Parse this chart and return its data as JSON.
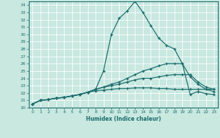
{
  "title": "",
  "xlabel": "Humidex (Indice chaleur)",
  "ylabel": "",
  "xlim": [
    -0.5,
    23.5
  ],
  "ylim": [
    20,
    34.5
  ],
  "yticks": [
    20,
    21,
    22,
    23,
    24,
    25,
    26,
    27,
    28,
    29,
    30,
    31,
    32,
    33,
    34
  ],
  "xticks": [
    0,
    1,
    2,
    3,
    4,
    5,
    6,
    7,
    8,
    9,
    10,
    11,
    12,
    13,
    14,
    15,
    16,
    17,
    18,
    19,
    20,
    21,
    22,
    23
  ],
  "bg_color": "#c8e8e0",
  "grid_color": "#ffffff",
  "line_color": "#1a6b6b",
  "lines": [
    {
      "x": [
        0,
        1,
        2,
        3,
        4,
        5,
        6,
        7,
        8,
        9,
        10,
        11,
        12,
        13,
        14,
        15,
        16,
        17,
        18,
        19,
        20,
        21,
        22,
        23
      ],
      "y": [
        20.5,
        21.0,
        21.1,
        21.3,
        21.4,
        21.6,
        21.8,
        22.1,
        22.5,
        25.0,
        30.0,
        32.2,
        33.2,
        34.5,
        33.0,
        31.2,
        29.5,
        28.5,
        28.0,
        26.0,
        21.8,
        22.2,
        21.9,
        21.8
      ]
    },
    {
      "x": [
        0,
        1,
        2,
        3,
        4,
        5,
        6,
        7,
        8,
        9,
        10,
        11,
        12,
        13,
        14,
        15,
        16,
        17,
        18,
        19,
        20,
        21,
        22,
        23
      ],
      "y": [
        20.5,
        21.0,
        21.1,
        21.3,
        21.4,
        21.6,
        21.8,
        22.1,
        22.5,
        22.8,
        23.2,
        23.5,
        24.0,
        24.5,
        25.0,
        25.3,
        25.7,
        26.0,
        26.0,
        26.0,
        24.2,
        23.2,
        22.5,
        22.2
      ]
    },
    {
      "x": [
        0,
        1,
        2,
        3,
        4,
        5,
        6,
        7,
        8,
        9,
        10,
        11,
        12,
        13,
        14,
        15,
        16,
        17,
        18,
        19,
        20,
        21,
        22,
        23
      ],
      "y": [
        20.5,
        21.0,
        21.1,
        21.3,
        21.4,
        21.6,
        21.8,
        22.1,
        22.5,
        22.8,
        23.0,
        23.2,
        23.5,
        23.8,
        24.0,
        24.0,
        24.2,
        24.4,
        24.5,
        24.5,
        24.5,
        23.5,
        22.8,
        22.5
      ]
    },
    {
      "x": [
        0,
        1,
        2,
        3,
        4,
        5,
        6,
        7,
        8,
        9,
        10,
        11,
        12,
        13,
        14,
        15,
        16,
        17,
        18,
        19,
        20,
        21,
        22,
        23
      ],
      "y": [
        20.5,
        21.0,
        21.1,
        21.3,
        21.4,
        21.6,
        21.8,
        22.1,
        22.3,
        22.4,
        22.5,
        22.6,
        22.6,
        22.7,
        22.7,
        22.7,
        22.6,
        22.6,
        22.5,
        22.5,
        22.5,
        22.5,
        22.5,
        22.5
      ]
    }
  ]
}
